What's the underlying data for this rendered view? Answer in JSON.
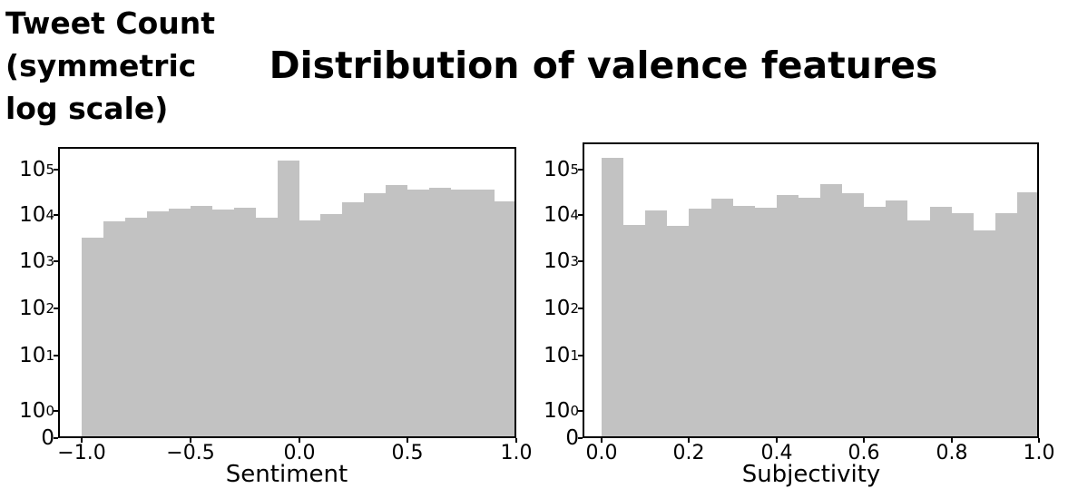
{
  "title": "Distribution of valence features",
  "y_axis_label": {
    "lines": [
      "Tweet Count",
      "(symmetric",
      "log scale)"
    ]
  },
  "colors": {
    "bar": "#c2c2c2",
    "axis": "#000000",
    "background": "#ffffff",
    "text": "#000000"
  },
  "y_axis": {
    "scale": "symmetric log",
    "ticks": [
      {
        "value": 0,
        "label": "0"
      },
      {
        "value": 1,
        "label": "10^0"
      },
      {
        "value": 10,
        "label": "10^1"
      },
      {
        "value": 100,
        "label": "10^2"
      },
      {
        "value": 1000,
        "label": "10^3"
      },
      {
        "value": 10000,
        "label": "10^4"
      },
      {
        "value": 100000,
        "label": "10^5"
      }
    ]
  },
  "chart_data": [
    {
      "type": "bar",
      "subtype": "histogram",
      "xlabel": "Sentiment",
      "xlim": [
        -1.0,
        1.0
      ],
      "bins": 20,
      "bin_start": -1.0,
      "bin_width": 0.1,
      "counts": [
        3200,
        7300,
        8700,
        12000,
        13800,
        15500,
        12900,
        14500,
        8700,
        162000,
        7500,
        10500,
        19000,
        30200,
        45700,
        37000,
        39800,
        35500,
        36300,
        20400
      ],
      "x_ticks": [
        {
          "value": -1.0,
          "label": "−1.0"
        },
        {
          "value": -0.5,
          "label": "−0.5"
        },
        {
          "value": 0.0,
          "label": "0.0"
        },
        {
          "value": 0.5,
          "label": "0.5"
        },
        {
          "value": 1.0,
          "label": "1.0"
        }
      ]
    },
    {
      "type": "bar",
      "subtype": "histogram",
      "xlabel": "Subjectivity",
      "xlim": [
        0.0,
        1.0
      ],
      "bins": 20,
      "bin_start": 0.0,
      "bin_width": 0.05,
      "counts": [
        182000,
        6100,
        12500,
        5800,
        13800,
        22900,
        15800,
        14500,
        27500,
        24000,
        47900,
        30200,
        15100,
        20900,
        7600,
        15100,
        11000,
        4600,
        11000,
        31600
      ],
      "x_ticks": [
        {
          "value": 0.0,
          "label": "0.0"
        },
        {
          "value": 0.2,
          "label": "0.2"
        },
        {
          "value": 0.4,
          "label": "0.4"
        },
        {
          "value": 0.6,
          "label": "0.6"
        },
        {
          "value": 0.8,
          "label": "0.8"
        },
        {
          "value": 1.0,
          "label": "1.0"
        }
      ]
    }
  ]
}
